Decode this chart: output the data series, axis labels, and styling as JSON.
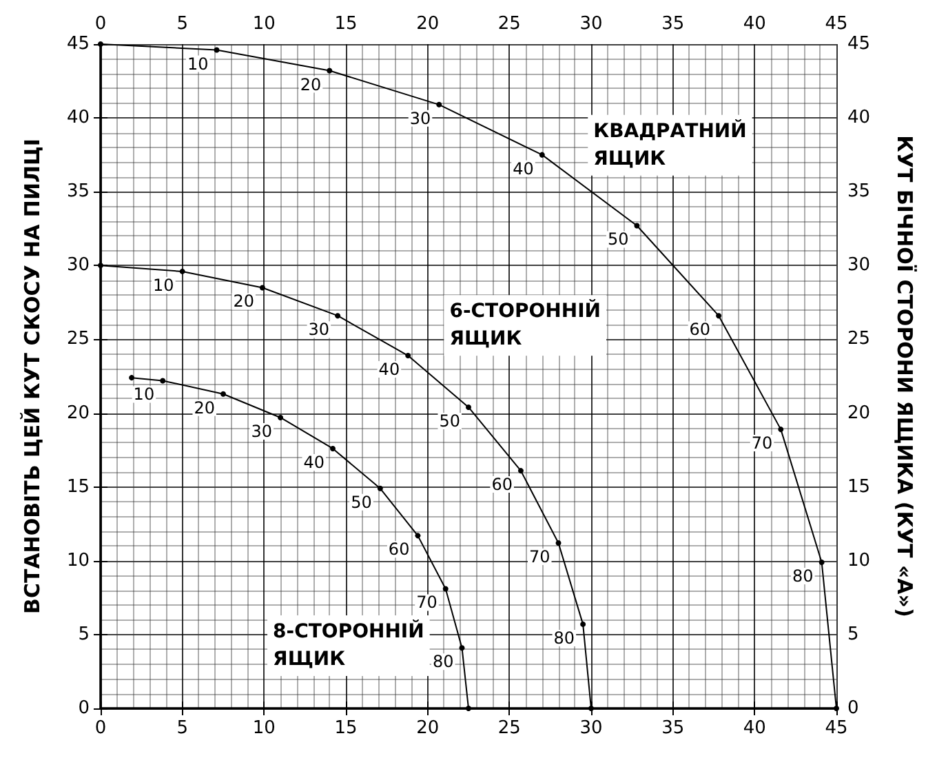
{
  "chart_data": {
    "type": "line",
    "ylabel": "ВСТАНОВІТЬ ЦЕЙ КУТ СКОСУ НА ПИЛЦІ",
    "y2label": "КУТ БІЧНОЇ СТОРОНИ ЯЩИКА (КУТ «А»)",
    "series": [
      {
        "name": "КВАДРАТНИЙ ЯЩИК",
        "color": "#000000",
        "x": [
          0,
          7.1,
          14.0,
          20.7,
          27.0,
          32.8,
          37.8,
          41.6,
          44.1,
          45
        ],
        "values": [
          45,
          44.6,
          43.2,
          40.9,
          37.5,
          32.7,
          26.6,
          18.9,
          9.9,
          0
        ]
      },
      {
        "name": "6-СТОРОННІЙ ЯЩИК",
        "color": "#000000",
        "x": [
          0,
          5.0,
          9.9,
          14.5,
          18.8,
          22.5,
          25.7,
          28.0,
          29.5,
          30
        ],
        "values": [
          30,
          29.6,
          28.5,
          26.6,
          23.9,
          20.4,
          16.1,
          11.2,
          5.7,
          0
        ]
      },
      {
        "name": "8-СТОРОННІЙ ЯЩИК",
        "color": "#000000",
        "x": [
          1.9,
          3.8,
          7.5,
          11.0,
          14.2,
          17.1,
          19.4,
          21.1,
          22.1,
          22.5
        ],
        "values": [
          22.4,
          22.2,
          21.3,
          19.7,
          17.6,
          14.9,
          11.7,
          8.1,
          4.1,
          0
        ]
      }
    ],
    "annotations": [
      {
        "text": "10",
        "x": 7.1,
        "y": 44.6
      },
      {
        "text": "20",
        "x": 14.0,
        "y": 43.2
      },
      {
        "text": "30",
        "x": 20.7,
        "y": 40.9
      },
      {
        "text": "40",
        "x": 27.0,
        "y": 37.5
      },
      {
        "text": "50",
        "x": 32.8,
        "y": 32.7
      },
      {
        "text": "60",
        "x": 37.8,
        "y": 26.6
      },
      {
        "text": "70",
        "x": 41.6,
        "y": 18.9
      },
      {
        "text": "80",
        "x": 44.1,
        "y": 9.9
      },
      {
        "text": "10",
        "x": 5.0,
        "y": 29.6
      },
      {
        "text": "20",
        "x": 9.9,
        "y": 28.5
      },
      {
        "text": "30",
        "x": 14.5,
        "y": 26.6
      },
      {
        "text": "40",
        "x": 18.8,
        "y": 23.9
      },
      {
        "text": "50",
        "x": 22.5,
        "y": 20.4
      },
      {
        "text": "60",
        "x": 25.7,
        "y": 16.1
      },
      {
        "text": "70",
        "x": 28.0,
        "y": 11.2
      },
      {
        "text": "80",
        "x": 29.5,
        "y": 5.7
      },
      {
        "text": "10",
        "x": 3.8,
        "y": 22.2
      },
      {
        "text": "20",
        "x": 7.5,
        "y": 21.3
      },
      {
        "text": "30",
        "x": 11.0,
        "y": 19.7
      },
      {
        "text": "40",
        "x": 14.2,
        "y": 17.6
      },
      {
        "text": "50",
        "x": 17.1,
        "y": 14.9
      },
      {
        "text": "60",
        "x": 19.4,
        "y": 11.7
      },
      {
        "text": "70",
        "x": 21.1,
        "y": 8.1
      },
      {
        "text": "80",
        "x": 22.1,
        "y": 4.1
      }
    ],
    "xlim": [
      0,
      45
    ],
    "xticks": [
      0,
      5,
      10,
      15,
      20,
      25,
      30,
      35,
      40,
      45
    ],
    "x2lim": [
      0,
      45
    ],
    "x2ticks": [
      0,
      5,
      10,
      15,
      20,
      25,
      30,
      35,
      40,
      45
    ],
    "ylim": [
      0,
      45
    ],
    "yticks": [
      0,
      5,
      10,
      15,
      20,
      25,
      30,
      35,
      40,
      45
    ],
    "y2lim": [
      0,
      45
    ],
    "y2ticks": [
      0,
      5,
      10,
      15,
      20,
      25,
      30,
      35,
      40,
      45
    ],
    "grid": true,
    "marker": "circle",
    "line_style": "solid",
    "legend": false
  }
}
